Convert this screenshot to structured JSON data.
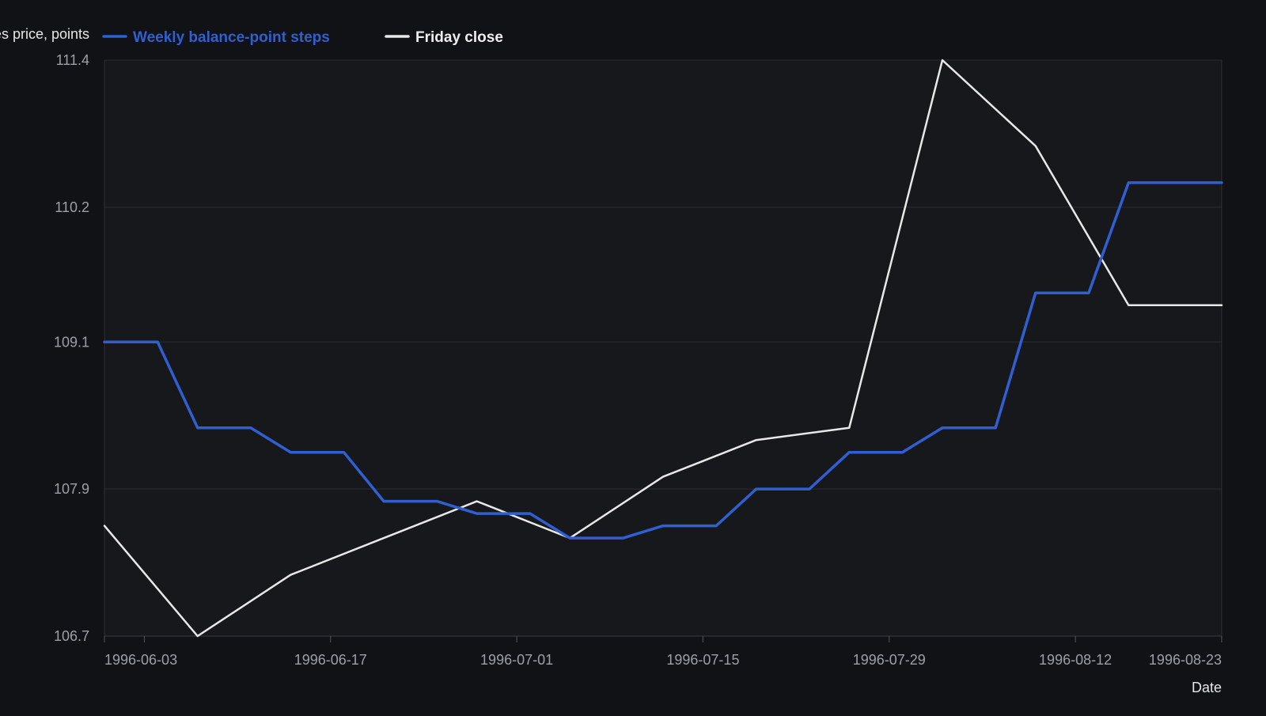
{
  "chart_data": {
    "type": "line",
    "title": "",
    "xlabel": "Date",
    "ylabel": "Futures price, points",
    "ylim": [
      106.7,
      111.4
    ],
    "xlim": [
      "1996-05-31",
      "1996-08-23"
    ],
    "grid": true,
    "legend_position": "top",
    "y_ticks": [
      "106.7",
      "107.9",
      "109.1",
      "110.2",
      "111.4"
    ],
    "x_ticks": [
      "1996-06-03",
      "1996-06-17",
      "1996-07-01",
      "1996-07-15",
      "1996-07-29",
      "1996-08-12",
      "1996-08-23"
    ],
    "series": [
      {
        "name": "Weekly balance-point steps",
        "color": "#2f5fd0",
        "style": "step",
        "x": [
          "1996-05-31",
          "1996-06-04",
          "1996-06-07",
          "1996-06-11",
          "1996-06-14",
          "1996-06-18",
          "1996-06-21",
          "1996-06-25",
          "1996-06-28",
          "1996-07-02",
          "1996-07-05",
          "1996-07-09",
          "1996-07-12",
          "1996-07-16",
          "1996-07-19",
          "1996-07-23",
          "1996-07-26",
          "1996-07-30",
          "1996-08-02",
          "1996-08-06",
          "1996-08-09",
          "1996-08-13",
          "1996-08-16",
          "1996-08-20",
          "1996-08-23"
        ],
        "y": [
          109.1,
          109.1,
          108.4,
          108.4,
          108.2,
          108.2,
          107.8,
          107.8,
          107.7,
          107.7,
          107.5,
          107.5,
          107.6,
          107.6,
          107.9,
          107.9,
          108.2,
          108.2,
          108.4,
          108.4,
          109.5,
          109.5,
          110.4,
          110.4,
          110.4
        ]
      },
      {
        "name": "Friday close",
        "color": "#e8e8e8",
        "style": "line",
        "x": [
          "1996-05-31",
          "1996-06-07",
          "1996-06-14",
          "1996-06-21",
          "1996-06-28",
          "1996-07-05",
          "1996-07-12",
          "1996-07-19",
          "1996-07-26",
          "1996-08-02",
          "1996-08-09",
          "1996-08-16",
          "1996-08-23"
        ],
        "y": [
          107.6,
          106.7,
          107.2,
          107.5,
          107.8,
          107.5,
          108.0,
          108.3,
          108.4,
          111.4,
          110.7,
          109.4,
          109.4
        ]
      }
    ]
  }
}
